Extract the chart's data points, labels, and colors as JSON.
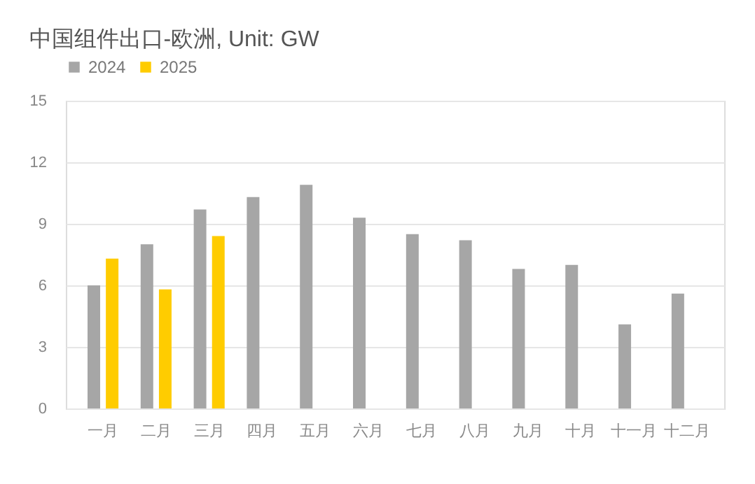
{
  "chart_data": {
    "type": "bar",
    "title": "中国组件出口-欧洲, Unit: GW",
    "categories": [
      "一月",
      "二月",
      "三月",
      "四月",
      "五月",
      "六月",
      "七月",
      "八月",
      "九月",
      "十月",
      "十一月",
      "十二月"
    ],
    "series": [
      {
        "name": "2024",
        "color": "#a6a6a6",
        "values": [
          6.0,
          8.0,
          9.7,
          10.3,
          10.9,
          9.3,
          8.5,
          8.2,
          6.8,
          7.0,
          4.1,
          5.6
        ]
      },
      {
        "name": "2025",
        "color": "#ffcc00",
        "values": [
          7.3,
          5.8,
          8.4,
          null,
          null,
          null,
          null,
          null,
          null,
          null,
          null,
          null
        ]
      }
    ],
    "ylim": [
      0,
      15
    ],
    "yticks": [
      0,
      3,
      6,
      9,
      12,
      15
    ],
    "grid": "y",
    "legend": "top left"
  }
}
